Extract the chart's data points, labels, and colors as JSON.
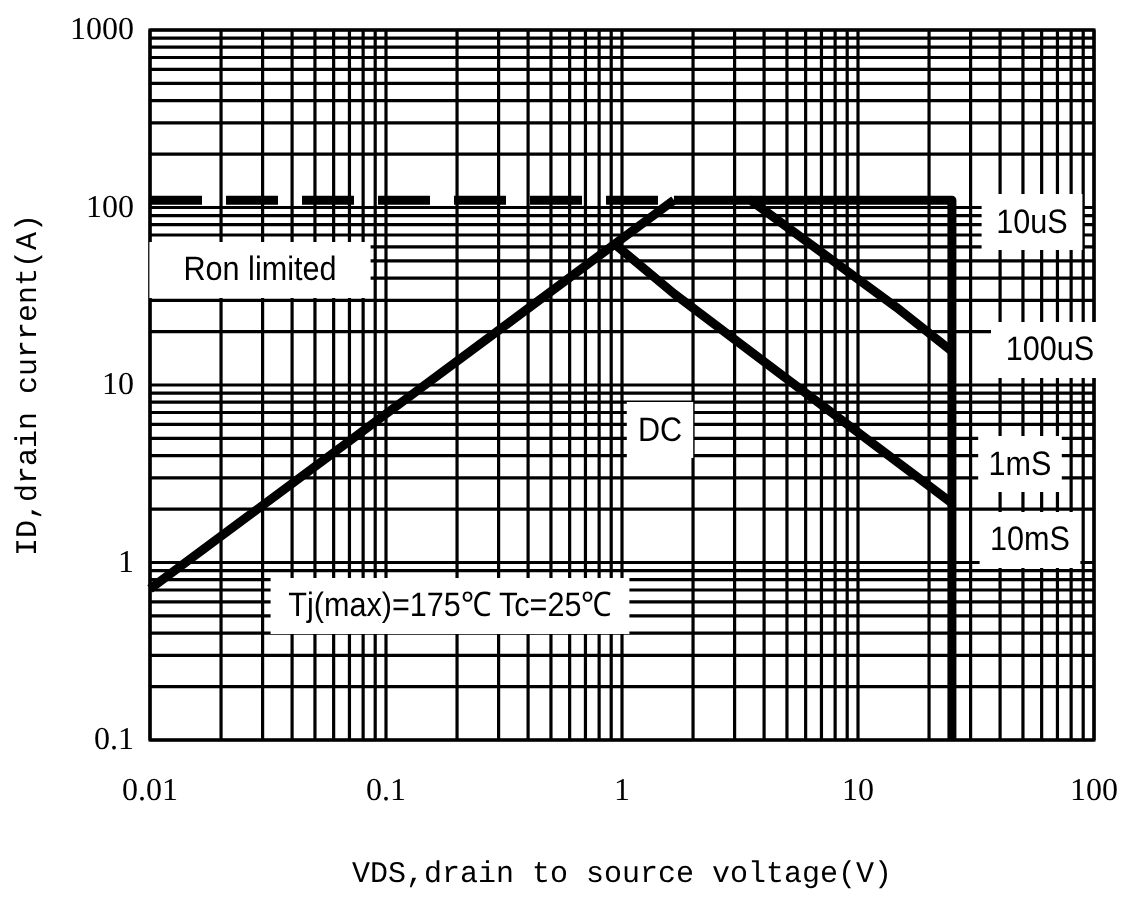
{
  "chart_data": {
    "type": "line",
    "xlabel": "VDS,drain to source voltage(V)",
    "ylabel": "ID,drain current(A)",
    "log": "xy",
    "xlim": [
      0.01,
      100
    ],
    "ylim": [
      0.1,
      1000
    ],
    "xticks": [
      0.01,
      0.1,
      1,
      10,
      100
    ],
    "yticks": [
      0.1,
      1,
      10,
      100,
      1000
    ],
    "grid": true,
    "marker": "none",
    "series": [
      {
        "color": "#000000",
        "x": [
          0.01,
          1.66
        ],
        "values": [
          0.71,
          110
        ]
      },
      {
        "color": "#000000",
        "x": [
          0.01,
          1.66
        ],
        "values": [
          110,
          110
        ],
        "line_style": "dashed"
      },
      {
        "color": "#000000",
        "x": [
          1.66,
          3.5,
          14.5,
          25
        ],
        "values": [
          110,
          110,
          27.5,
          15.5
        ]
      },
      {
        "color": "#000000",
        "x": [
          0.92,
          1.66,
          25
        ],
        "values": [
          63,
          32.7,
          2.16
        ]
      },
      {
        "color": "#000000",
        "x": [
          3.5,
          25,
          25
        ],
        "values": [
          110,
          110,
          0.1
        ]
      }
    ],
    "annotations": [
      "Ron limited",
      "DC",
      "Tj(max)=175℃ Tc=25℃",
      "10uS",
      "100uS",
      "1mS",
      "10mS"
    ]
  }
}
